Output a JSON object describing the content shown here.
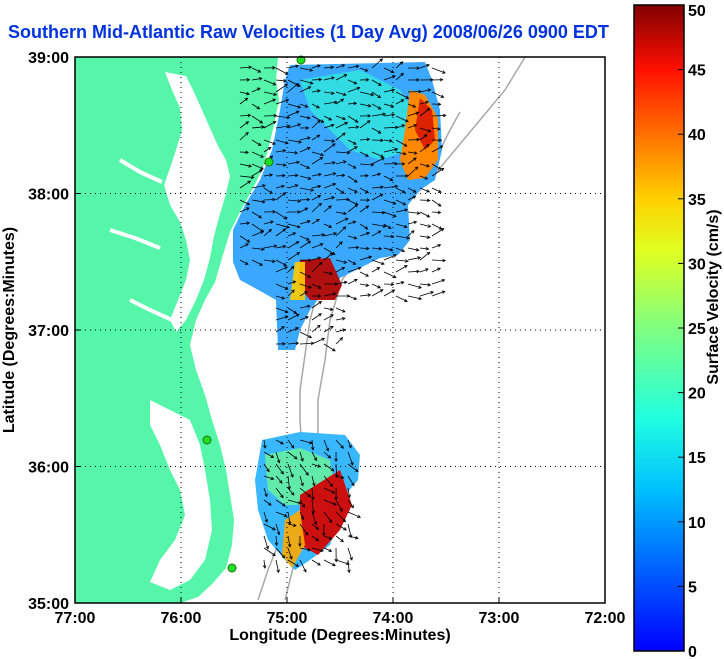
{
  "title": "Southern Mid-Atlantic Raw Velocities (1 Day Avg) 2008/06/26 0900 EDT",
  "map": {
    "xlabel": "Longitude (Degrees:Minutes)",
    "ylabel": "Latitude (Degrees:Minutes)",
    "lon_ticks": [
      "77:00",
      "76:00",
      "75:00",
      "74:00",
      "73:00",
      "72:00"
    ],
    "lat_ticks": [
      "39:00",
      "38:00",
      "37:00",
      "36:00",
      "35:00"
    ],
    "lon_range": [
      -77,
      -72
    ],
    "lat_range": [
      35,
      39
    ],
    "grid": true,
    "land_color": "#55f5aa",
    "isobath_color": "#a8a8a8",
    "station_color": "#22dd22"
  },
  "colorbar": {
    "label": "Surface Velocity (cm/s)",
    "min": 0,
    "max": 50,
    "ticks": [
      "0",
      "5",
      "10",
      "15",
      "20",
      "25",
      "30",
      "35",
      "40",
      "45",
      "50"
    ]
  }
}
